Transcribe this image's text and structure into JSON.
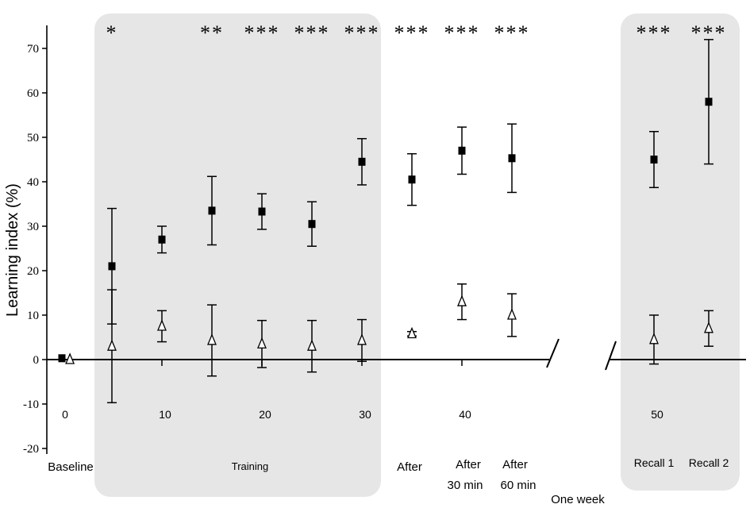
{
  "chart_data": {
    "type": "scatter",
    "ylabel": "Learning index (%)",
    "ylim": [
      -20,
      75
    ],
    "yticks": [
      -20,
      -10,
      0,
      10,
      20,
      30,
      40,
      50,
      60,
      70
    ],
    "xticks": [
      {
        "x": 0,
        "label": "0"
      },
      {
        "x": 10,
        "label": "10"
      },
      {
        "x": 20,
        "label": "20"
      },
      {
        "x": 30,
        "label": "30"
      },
      {
        "x": 40,
        "label": "40"
      },
      {
        "x": 50,
        "label": "50"
      }
    ],
    "phase_labels": [
      {
        "id": "baseline",
        "text": "Baseline"
      },
      {
        "id": "training",
        "text": "Training"
      },
      {
        "id": "after",
        "text": "After"
      },
      {
        "id": "after30-a",
        "text": "After"
      },
      {
        "id": "after30-b",
        "text": "30 min"
      },
      {
        "id": "after60-a",
        "text": "After"
      },
      {
        "id": "after60-b",
        "text": "60 min"
      },
      {
        "id": "oneweek",
        "text": "One week"
      },
      {
        "id": "recall1",
        "text": "Recall 1"
      },
      {
        "id": "recall2",
        "text": "Recall 2"
      }
    ],
    "series": [
      {
        "marker": "filled-square",
        "color": "#000000",
        "points": [
          {
            "x": 0,
            "y": 0.3,
            "err": 0
          },
          {
            "x": 5,
            "y": 21,
            "err": 13
          },
          {
            "x": 10,
            "y": 27,
            "err": 3
          },
          {
            "x": 15,
            "y": 33.5,
            "err": 7.7
          },
          {
            "x": 20,
            "y": 33.3,
            "err": 4
          },
          {
            "x": 25,
            "y": 30.5,
            "err": 5
          },
          {
            "x": 30,
            "y": 44.5,
            "err": 5.2
          },
          {
            "x": 35,
            "y": 40.5,
            "err": 5.8
          },
          {
            "x": 40,
            "y": 47,
            "err": 5.3
          },
          {
            "x": 45,
            "y": 45.3,
            "err": 7.7
          },
          {
            "x": 50,
            "y": 45,
            "err": 6.3
          },
          {
            "x": 55,
            "y": 58,
            "err": 14
          }
        ]
      },
      {
        "marker": "open-triangle",
        "color": "#000000",
        "points": [
          {
            "x": 0.8,
            "y": 0,
            "err": 0
          },
          {
            "x": 5,
            "y": 3,
            "err": 12.7
          },
          {
            "x": 10,
            "y": 7.5,
            "err": 3.5
          },
          {
            "x": 15,
            "y": 4.3,
            "err": 8
          },
          {
            "x": 20,
            "y": 3.5,
            "err": 5.3
          },
          {
            "x": 25,
            "y": 3,
            "err": 5.8
          },
          {
            "x": 30,
            "y": 4.3,
            "err": 4.7
          },
          {
            "x": 35,
            "y": 5.8,
            "err": 0.5
          },
          {
            "x": 40,
            "y": 13,
            "err": 4
          },
          {
            "x": 45,
            "y": 10,
            "err": 4.8
          },
          {
            "x": 50,
            "y": 4.5,
            "err": 5.5
          },
          {
            "x": 55,
            "y": 7,
            "err": 4
          }
        ]
      }
    ],
    "significance": [
      {
        "x": 5,
        "label": "*"
      },
      {
        "x": 15,
        "label": "**"
      },
      {
        "x": 20,
        "label": "***"
      },
      {
        "x": 25,
        "label": "***"
      },
      {
        "x": 30,
        "label": "***"
      },
      {
        "x": 35,
        "label": "***"
      },
      {
        "x": 40,
        "label": "***"
      },
      {
        "x": 45,
        "label": "***"
      },
      {
        "x": 50,
        "label": "***"
      },
      {
        "x": 55,
        "label": "***"
      }
    ],
    "shaded_phases": [
      "Training",
      "Recall"
    ],
    "axis_break": "between 60 min and Recall 1",
    "grid": false,
    "legend": "none"
  }
}
